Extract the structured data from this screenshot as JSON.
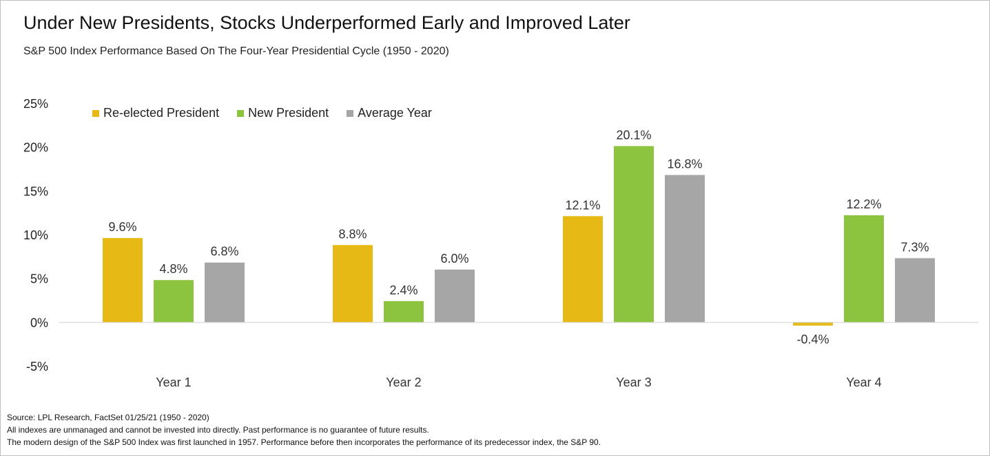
{
  "title": "Under New Presidents, Stocks Underperformed Early and Improved Later",
  "subtitle": "S&P 500 Index Performance Based On The Four-Year Presidential Cycle (1950 - 2020)",
  "chart_data": {
    "type": "bar",
    "title": "Under New Presidents, Stocks Underperformed Early and Improved Later",
    "subtitle": "S&P 500 Index Performance Based On The Four-Year Presidential Cycle (1950 - 2020)",
    "categories": [
      "Year 1",
      "Year 2",
      "Year 3",
      "Year 4"
    ],
    "series": [
      {
        "name": "Re-elected President",
        "color": "#E7B914",
        "values": [
          9.6,
          8.8,
          12.1,
          -0.4
        ],
        "labels": [
          "9.6%",
          "8.8%",
          "12.1%",
          "-0.4%"
        ]
      },
      {
        "name": "New President",
        "color": "#8CC43F",
        "values": [
          4.8,
          2.4,
          20.1,
          12.2
        ],
        "labels": [
          "4.8%",
          "2.4%",
          "20.1%",
          "12.2%"
        ]
      },
      {
        "name": "Average Year",
        "color": "#A6A6A6",
        "values": [
          6.8,
          6.0,
          16.8,
          7.3
        ],
        "labels": [
          "6.8%",
          "6.0%",
          "16.8%",
          "7.3%"
        ]
      }
    ],
    "ylim": [
      -5,
      25
    ],
    "yticks": [
      25,
      20,
      15,
      10,
      5,
      0,
      -5
    ],
    "ytick_labels": [
      "25%",
      "20%",
      "15%",
      "10%",
      "5%",
      "0%",
      "-5%"
    ],
    "xlabel": "",
    "ylabel": "",
    "grid": false,
    "legend_position": "top-left"
  },
  "notes": {
    "source": "Source:  LPL Research,  FactSet 01/25/21 (1950  - 2020)",
    "disclaimer": "All indexes are unmanaged and cannot be invested into directly. Past performance is no guarantee of future results.",
    "history": "The modern design of the S&P 500  Index was first launched in 1957.  Performance before then incorporates the performance of its predecessor index, the S&P 90."
  }
}
